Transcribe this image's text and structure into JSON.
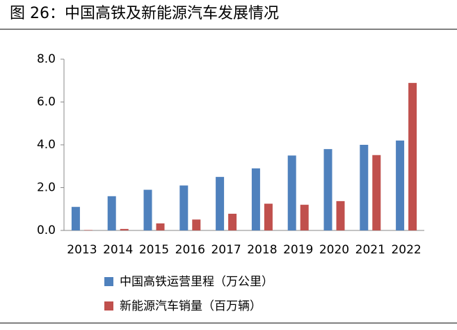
{
  "chart_data": {
    "type": "bar",
    "title": "图 26：中国高铁及新能源汽车发展情况",
    "categories": [
      "2013",
      "2014",
      "2015",
      "2016",
      "2017",
      "2018",
      "2019",
      "2020",
      "2021",
      "2022"
    ],
    "series": [
      {
        "name": "中国高铁运营里程（万公里）",
        "color": "#4f81bd",
        "values": [
          1.1,
          1.6,
          1.9,
          2.1,
          2.5,
          2.9,
          3.5,
          3.8,
          4.0,
          4.2
        ]
      },
      {
        "name": "新能源汽车销量（百万辆）",
        "color": "#c0504d",
        "values": [
          0.02,
          0.07,
          0.33,
          0.51,
          0.78,
          1.25,
          1.2,
          1.37,
          3.52,
          6.89
        ]
      }
    ],
    "ylim": [
      0,
      8
    ],
    "yticks": [
      {
        "value": 0,
        "label": "0.0"
      },
      {
        "value": 2,
        "label": "2.0"
      },
      {
        "value": 4,
        "label": "4.0"
      },
      {
        "value": 6,
        "label": "6.0"
      },
      {
        "value": 8,
        "label": "8.0"
      }
    ],
    "grid": false
  }
}
